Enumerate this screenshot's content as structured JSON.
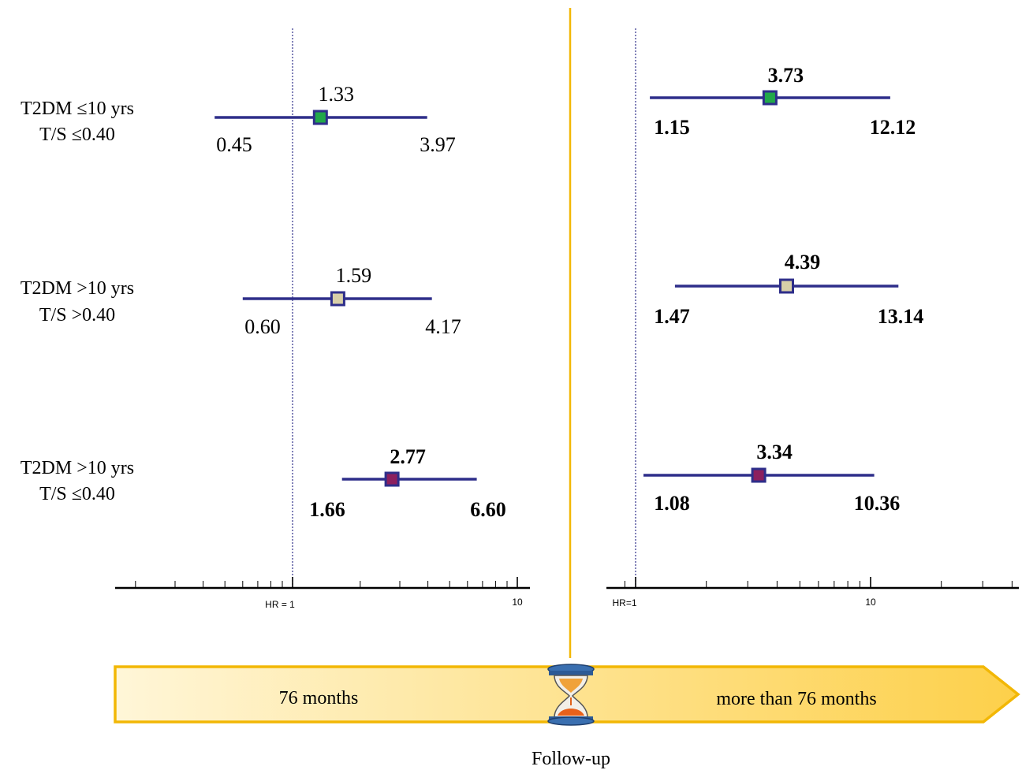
{
  "chart_data": [
    {
      "type": "forest",
      "scale": "log",
      "axis": {
        "reference_value": 1,
        "reference_label": "HR = 1",
        "tick_label_10": "10",
        "range": [
          0.2,
          13
        ]
      },
      "rows": [
        {
          "label_line1": "T2DM ≤10 yrs",
          "label_line2": "T/S ≤0.40",
          "hr": 1.33,
          "lower": 0.45,
          "upper": 3.97,
          "hr_text": "1.33",
          "lower_text": "0.45",
          "upper_text": "3.97",
          "bold": false,
          "marker_color": "#22a84a"
        },
        {
          "label_line1": "T2DM >10 yrs",
          "label_line2": "T/S >0.40",
          "hr": 1.59,
          "lower": 0.6,
          "upper": 4.17,
          "hr_text": "1.59",
          "lower_text": "0.60",
          "upper_text": "4.17",
          "bold": false,
          "marker_color": "#d8cfa8"
        },
        {
          "label_line1": "T2DM >10 yrs",
          "label_line2": "T/S ≤0.40",
          "hr": 2.77,
          "lower": 1.66,
          "upper": 6.6,
          "hr_text": "2.77",
          "lower_text": "1.66",
          "upper_text": "6.60",
          "bold": true,
          "marker_color": "#8c1f5e"
        }
      ]
    },
    {
      "type": "forest",
      "scale": "log",
      "axis": {
        "reference_value": 1,
        "reference_label": "HR=1",
        "tick_label_10": "10",
        "range": [
          1,
          43
        ]
      },
      "rows": [
        {
          "hr": 3.73,
          "lower": 1.15,
          "upper": 12.12,
          "hr_text": "3.73",
          "lower_text": "1.15",
          "upper_text": "12.12",
          "bold": true,
          "marker_color": "#22a84a"
        },
        {
          "hr": 4.39,
          "lower": 1.47,
          "upper": 13.14,
          "hr_text": "4.39",
          "lower_text": "1.47",
          "upper_text": "13.14",
          "bold": true,
          "marker_color": "#d8cfa8"
        },
        {
          "hr": 3.34,
          "lower": 1.08,
          "upper": 10.36,
          "hr_text": "3.34",
          "lower_text": "1.08",
          "upper_text": "10.36",
          "bold": true,
          "marker_color": "#8c1f5e"
        }
      ]
    }
  ],
  "timeline": {
    "left_label": "76 months",
    "right_label": "more than 76 months",
    "caption": "Follow-up"
  },
  "colors": {
    "ci_line": "#2e2e8a",
    "marker_border": "#2e2e8a",
    "divider": "#f2b705",
    "arrow_border": "#f2b705",
    "arrow_fill_start": "#fff6d8",
    "arrow_fill_end": "#fdd04a",
    "axis": "#000000"
  }
}
